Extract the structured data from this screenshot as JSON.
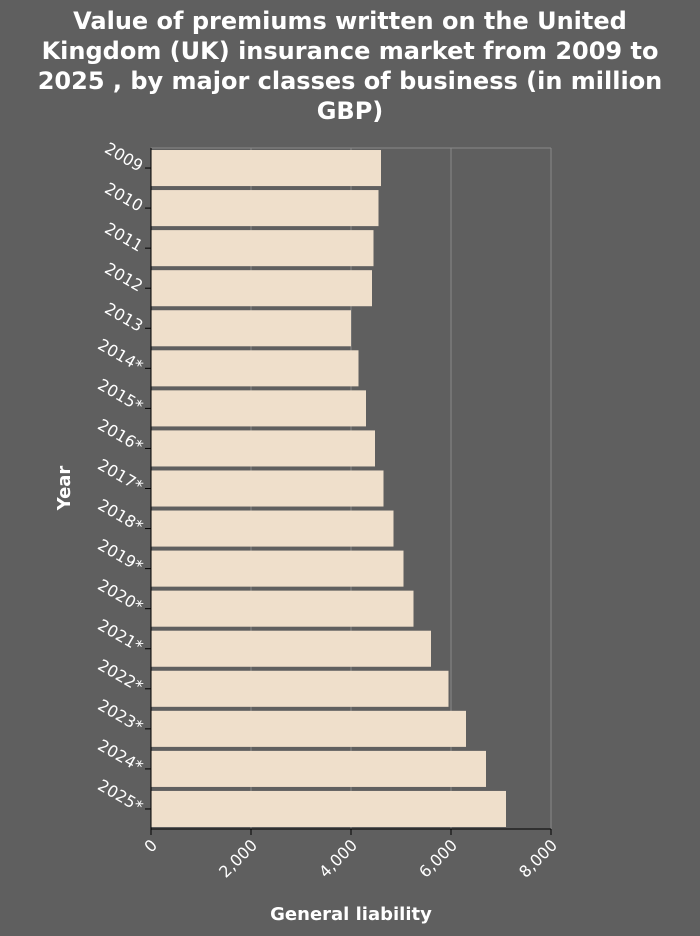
{
  "chart_data": {
    "type": "bar",
    "orientation": "horizontal",
    "title_lines": [
      "Value of premiums written on the United",
      "Kingdom (UK) insurance market from 2009 to",
      "2025 , by major classes of business (in million",
      "GBP)"
    ],
    "xlabel": "General liability",
    "ylabel": "Year",
    "categories": [
      "2009",
      "2010",
      "2011",
      "2012",
      "2013",
      "2014*",
      "2015*",
      "2016*",
      "2017*",
      "2018*",
      "2019*",
      "2020*",
      "2021*",
      "2022*",
      "2023*",
      "2024*",
      "2025*"
    ],
    "values": [
      4600,
      4550,
      4450,
      4420,
      4000,
      4150,
      4300,
      4480,
      4650,
      4850,
      5050,
      5250,
      5600,
      5950,
      6300,
      6700,
      7100
    ],
    "xlim": [
      0,
      8000
    ],
    "xticks": [
      "0",
      "2,000",
      "4,000",
      "6,000",
      "8,000"
    ],
    "grid": true,
    "colors": {
      "background": "#5f5f5f",
      "bar": "#efdfcb",
      "text": "#ffffff",
      "grid": "#8a8a8a"
    }
  }
}
